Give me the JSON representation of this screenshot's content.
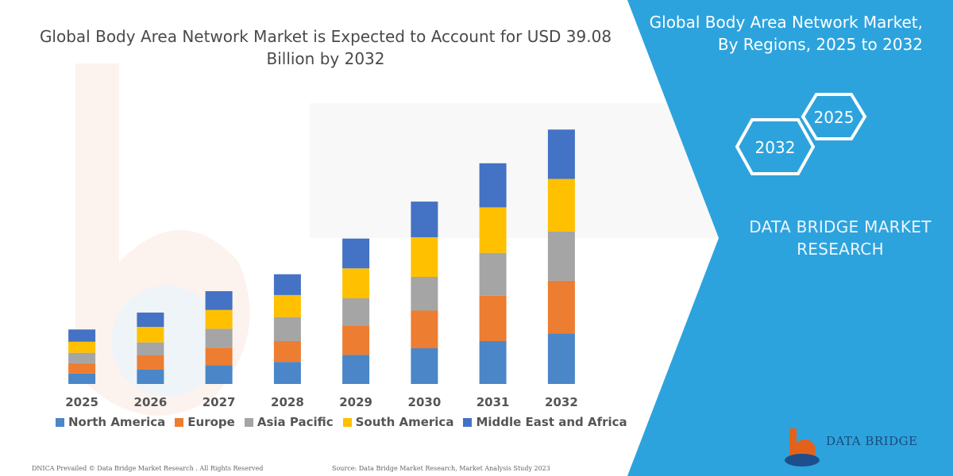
{
  "header": {
    "chart_title": "Global Body Area Network Market is Expected to Account for USD 39.08 Billion by 2032"
  },
  "side_panel": {
    "title_line1": "Global Body Area Network Market,",
    "title_line2": "By Regions, 2025 to 2032",
    "hex_badge_2025": "2025",
    "hex_badge_2032": "2032",
    "brand_line1": "DATA BRIDGE MARKET",
    "brand_line2": "RESEARCH",
    "logo_text": "DATA BRIDGE",
    "panel_color": "#2da3dd"
  },
  "footer": {
    "copyright": "DNICA Prevailed © Data Bridge Market Research . All Rights Reserved",
    "source": "Source: Data Bridge Market Research, Market Analysis Study 2023"
  },
  "chart_data": {
    "type": "bar",
    "stacked": true,
    "title": "Global Body Area Network Market is Expected to Account for USD 39.08 Billion by 2032",
    "xlabel": "",
    "ylabel": "",
    "categories": [
      "2025",
      "2026",
      "2027",
      "2028",
      "2029",
      "2030",
      "2031",
      "2032"
    ],
    "ylim": [
      0,
      40
    ],
    "grid": false,
    "legend_placement": "bottom",
    "series": [
      {
        "name": "North America",
        "color": "#4a86c8",
        "values": [
          1.6,
          2.2,
          2.9,
          3.4,
          4.5,
          5.5,
          6.6,
          7.8
        ]
      },
      {
        "name": "Europe",
        "color": "#ed7d31",
        "values": [
          1.6,
          2.2,
          2.7,
          3.2,
          4.5,
          5.8,
          7.0,
          8.1
        ]
      },
      {
        "name": "Asia Pacific",
        "color": "#a5a5a5",
        "values": [
          1.6,
          2.0,
          2.9,
          3.7,
          4.2,
          5.2,
          6.6,
          7.6
        ]
      },
      {
        "name": "South America",
        "color": "#ffc000",
        "values": [
          1.7,
          2.4,
          2.9,
          3.4,
          4.6,
          6.1,
          7.0,
          8.1
        ]
      },
      {
        "name": "Middle East and Africa",
        "color": "#4472c4",
        "values": [
          1.9,
          2.2,
          2.9,
          3.2,
          4.6,
          5.5,
          6.8,
          7.6
        ]
      }
    ]
  }
}
